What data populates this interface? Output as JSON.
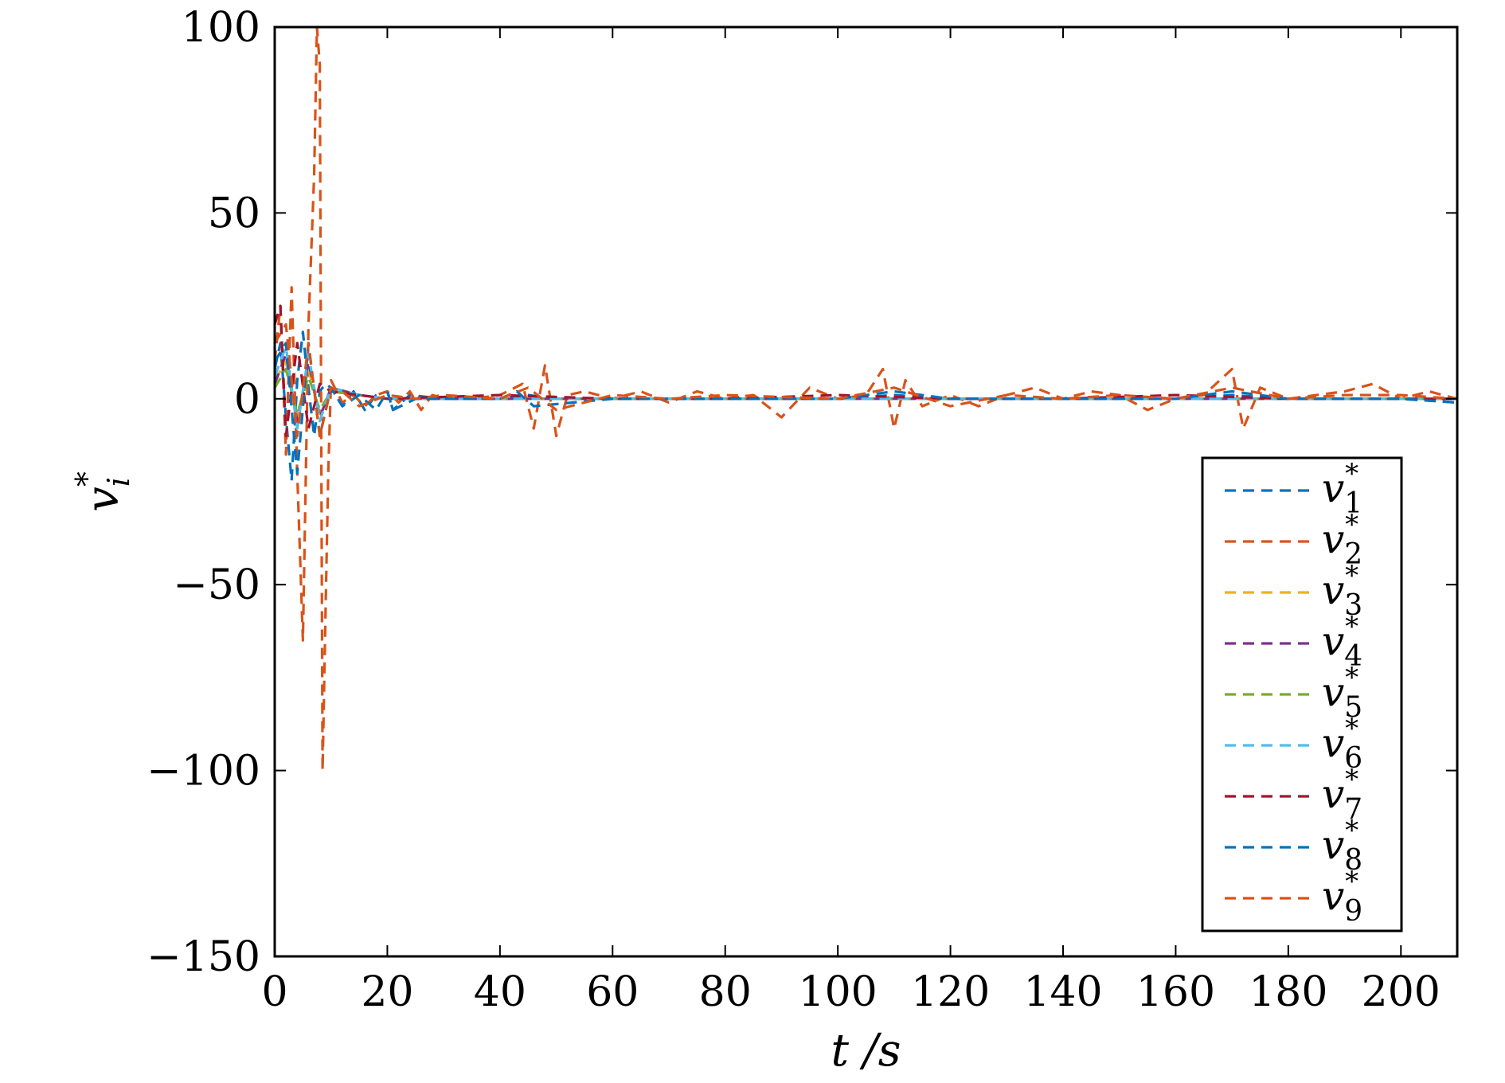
{
  "chart_data": {
    "type": "line",
    "xlabel": "t /s",
    "ylabel": "v_i^*",
    "ylabel_display": {
      "base": "v",
      "sub": "i",
      "sup": "*"
    },
    "xlim": [
      0,
      210
    ],
    "ylim": [
      -150,
      100
    ],
    "xticks": [
      0,
      20,
      40,
      60,
      80,
      100,
      120,
      140,
      160,
      180,
      200
    ],
    "yticks": [
      -150,
      -100,
      -50,
      0,
      50,
      100
    ],
    "xtick_labels": [
      "0",
      "20",
      "40",
      "60",
      "80",
      "100",
      "120",
      "140",
      "160",
      "180",
      "200"
    ],
    "ytick_labels": [
      "−150",
      "−100",
      "−50",
      "0",
      "50",
      "100"
    ],
    "grid": false,
    "legend_position": "lower-right",
    "line_style": "dashed",
    "series": [
      {
        "name": "v_1^*",
        "base": "v",
        "sub": "1",
        "sup": "*",
        "color": "#0072BD",
        "x": [
          0,
          1,
          2,
          3,
          4,
          5,
          6,
          7,
          8,
          9,
          10,
          12,
          14,
          16,
          18,
          20,
          21,
          24,
          30,
          40,
          45,
          50,
          60,
          80,
          100,
          110,
          120,
          140,
          160,
          170,
          180,
          200,
          210
        ],
        "y": [
          8,
          15,
          -5,
          -22,
          5,
          18,
          3,
          -10,
          2,
          4,
          3,
          -2,
          2,
          -3,
          1,
          2,
          -3,
          1,
          0,
          0,
          1,
          0,
          0,
          0,
          0,
          1,
          0,
          0,
          0,
          1,
          0,
          0,
          -1
        ]
      },
      {
        "name": "v_2^*",
        "base": "v",
        "sub": "2",
        "sup": "*",
        "color": "#D95319",
        "x": [
          0,
          1,
          2,
          3,
          4,
          5,
          6,
          7,
          7.5,
          8,
          8.5,
          9,
          9.5,
          10,
          11,
          12,
          14,
          16,
          18,
          20,
          22,
          24,
          26,
          28,
          30,
          32,
          35,
          40,
          44,
          46,
          48,
          50,
          52,
          55,
          60,
          65,
          70,
          75,
          80,
          85,
          90,
          95,
          100,
          105,
          108,
          110,
          112,
          115,
          120,
          125,
          130,
          135,
          140,
          145,
          150,
          155,
          160,
          165,
          170,
          172,
          175,
          180,
          185,
          190,
          195,
          200,
          205,
          210
        ],
        "y": [
          10,
          25,
          -15,
          30,
          -20,
          -65,
          20,
          60,
          100,
          90,
          -100,
          -60,
          -20,
          5,
          2,
          -1,
          1,
          -2,
          1,
          2,
          -1,
          2,
          -3,
          1,
          0,
          1,
          0,
          1,
          4,
          -8,
          9,
          -10,
          1,
          2,
          0,
          2,
          -1,
          2,
          0,
          1,
          -5,
          3,
          0,
          1,
          8,
          -8,
          5,
          -2,
          1,
          -2,
          1,
          3,
          0,
          2,
          1,
          -3,
          0,
          1,
          8,
          -8,
          3,
          0,
          1,
          2,
          4,
          0,
          2,
          0
        ]
      },
      {
        "name": "v_3^*",
        "base": "v",
        "sub": "3",
        "sup": "*",
        "color": "#EDB120",
        "x": [
          0,
          2,
          4,
          6,
          8,
          10,
          15,
          20,
          40,
          60,
          80,
          100,
          120,
          140,
          160,
          180,
          200,
          210
        ],
        "y": [
          5,
          10,
          -5,
          8,
          -4,
          2,
          1,
          0,
          0,
          0,
          0,
          0,
          0,
          0,
          0,
          0,
          0,
          0
        ]
      },
      {
        "name": "v_4^*",
        "base": "v",
        "sub": "4",
        "sup": "*",
        "color": "#7E2F8E",
        "x": [
          0,
          2,
          4,
          6,
          8,
          10,
          15,
          20,
          40,
          60,
          80,
          100,
          120,
          140,
          160,
          180,
          200,
          210
        ],
        "y": [
          4,
          12,
          -6,
          10,
          -5,
          3,
          1,
          0,
          0,
          0,
          0,
          0,
          0,
          0,
          0,
          0,
          0,
          0
        ]
      },
      {
        "name": "v_5^*",
        "base": "v",
        "sub": "5",
        "sup": "*",
        "color": "#77AC30",
        "x": [
          0,
          2,
          4,
          6,
          8,
          10,
          15,
          20,
          40,
          60,
          80,
          100,
          120,
          140,
          160,
          180,
          200,
          210
        ],
        "y": [
          3,
          8,
          -4,
          6,
          -3,
          2,
          1,
          0,
          0,
          0,
          0,
          0,
          0,
          0,
          0,
          0,
          0,
          0
        ]
      },
      {
        "name": "v_6^*",
        "base": "v",
        "sub": "6",
        "sup": "*",
        "color": "#4DBEEE",
        "x": [
          0,
          2,
          4,
          6,
          8,
          10,
          15,
          20,
          40,
          60,
          80,
          100,
          120,
          140,
          160,
          180,
          200,
          210
        ],
        "y": [
          6,
          14,
          -8,
          12,
          -6,
          3,
          1,
          0,
          0,
          0,
          0,
          0,
          0,
          0,
          0,
          0,
          0,
          0
        ]
      },
      {
        "name": "v_7^*",
        "base": "v",
        "sub": "7",
        "sup": "*",
        "color": "#A2142F",
        "x": [
          0,
          1,
          2,
          4,
          6,
          8,
          10,
          15,
          20,
          40,
          60,
          80,
          100,
          120,
          140,
          160,
          180,
          200,
          210
        ],
        "y": [
          20,
          25,
          -10,
          15,
          -8,
          4,
          2,
          1,
          0,
          1,
          0,
          0,
          1,
          0,
          0,
          1,
          0,
          0,
          0
        ]
      },
      {
        "name": "v_8^*",
        "base": "v",
        "sub": "8",
        "sup": "*",
        "color": "#0072BD",
        "x": [
          0,
          2,
          4,
          6,
          8,
          10,
          12,
          15,
          18,
          20,
          21,
          25,
          30,
          40,
          43,
          46,
          60,
          80,
          100,
          110,
          120,
          140,
          160,
          170,
          180,
          200,
          210
        ],
        "y": [
          10,
          15,
          -20,
          15,
          -10,
          3,
          -2,
          1,
          -3,
          2,
          -3,
          0,
          0,
          0,
          2,
          -2,
          0,
          0,
          0,
          2,
          0,
          0,
          0,
          2,
          0,
          0,
          -1
        ]
      },
      {
        "name": "v_9^*",
        "base": "v",
        "sub": "9",
        "sup": "*",
        "color": "#D95319",
        "x": [
          0,
          2,
          4,
          6,
          8,
          10,
          12,
          15,
          20,
          25,
          30,
          40,
          45,
          50,
          60,
          70,
          80,
          100,
          110,
          120,
          130,
          140,
          150,
          160,
          170,
          180,
          190,
          200,
          210
        ],
        "y": [
          15,
          20,
          -10,
          15,
          -10,
          3,
          2,
          -2,
          1,
          0,
          1,
          0,
          3,
          -3,
          1,
          0,
          1,
          0,
          3,
          -2,
          1,
          0,
          1,
          0,
          3,
          0,
          1,
          1,
          0
        ]
      }
    ]
  }
}
